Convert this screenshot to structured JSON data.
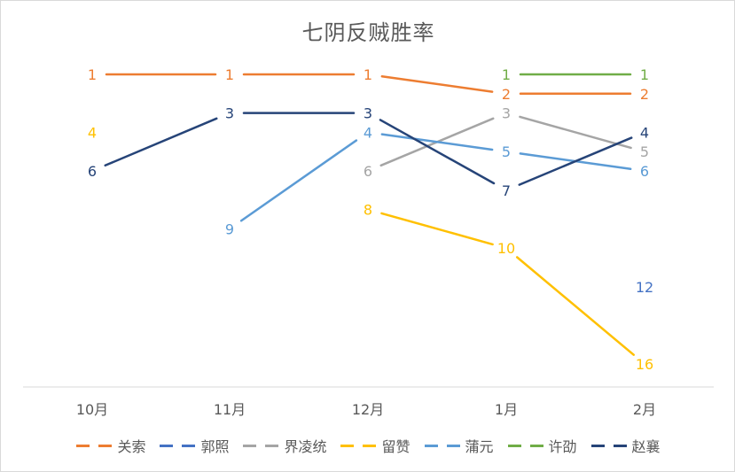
{
  "chart_data": {
    "type": "line",
    "title": "七阴反贼胜率",
    "categories": [
      "10月",
      "11月",
      "12月",
      "1月",
      "2月"
    ],
    "y_axis": {
      "reversed": true,
      "range": [
        0,
        16.5
      ],
      "visible": false
    },
    "grid": false,
    "legend_position": "bottom",
    "series": [
      {
        "name": "关索",
        "color": "#ED7D31",
        "values": [
          1,
          1,
          1,
          2,
          2
        ]
      },
      {
        "name": "郭照",
        "color": "#4472C4",
        "values": [
          null,
          null,
          null,
          null,
          12
        ]
      },
      {
        "name": "界凌统",
        "color": "#A5A5A5",
        "values": [
          null,
          null,
          6,
          3,
          5
        ]
      },
      {
        "name": "留赞",
        "color": "#FFC000",
        "values": [
          4,
          null,
          8,
          10,
          16
        ]
      },
      {
        "name": "蒲元",
        "color": "#5B9BD5",
        "values": [
          null,
          9,
          4,
          5,
          6
        ]
      },
      {
        "name": "许劭",
        "color": "#70AD47",
        "values": [
          null,
          null,
          null,
          1,
          1
        ]
      },
      {
        "name": "赵襄",
        "color": "#264478",
        "values": [
          6,
          3,
          3,
          7,
          4
        ]
      }
    ]
  }
}
